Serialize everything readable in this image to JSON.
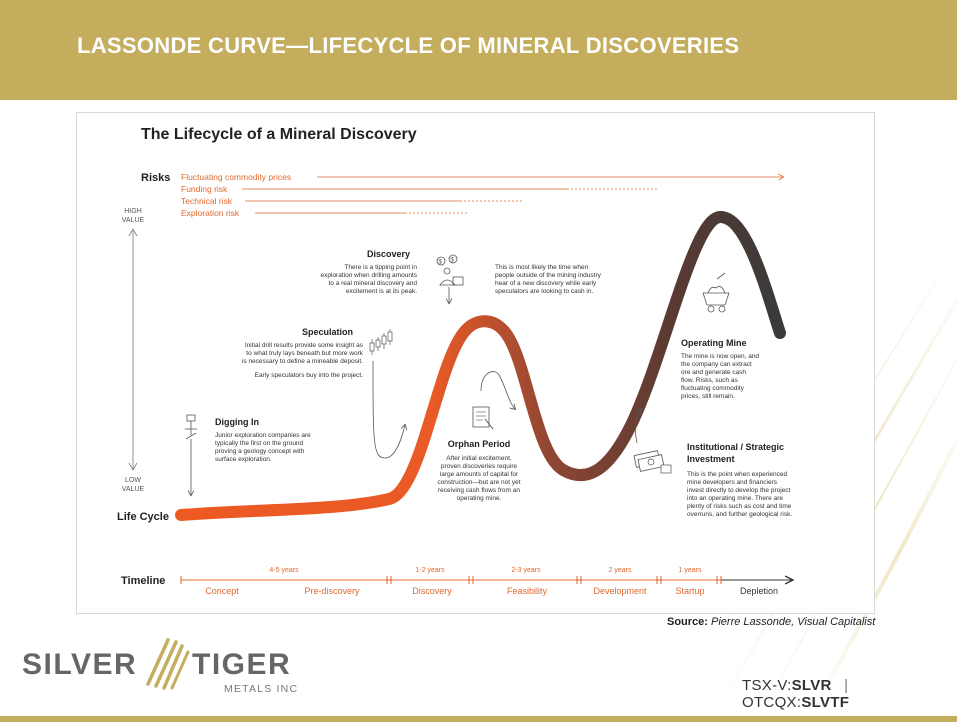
{
  "slide": {
    "title": "LASSONDE CURVE—LIFECYCLE OF MINERAL DISCOVERIES",
    "source_label": "Source:",
    "source_text": "Pierre Lassonde, Visual Capitalist"
  },
  "diagram": {
    "title": "The Lifecycle of a Mineral Discovery",
    "risks_label": "Risks",
    "risks": [
      "Fluctuating commodity prices",
      "Funding risk",
      "Technical risk",
      "Exploration risk"
    ],
    "high_value": [
      "HIGH",
      "VALUE"
    ],
    "low_value": [
      "LOW",
      "VALUE"
    ],
    "life_cycle_label": "Life Cycle",
    "stages": {
      "discovery": {
        "title": "Discovery",
        "lines": [
          "There is a tipping point in",
          "exploration when drilling amounts",
          "to a real mineral discovery and",
          "excitement is at its peak."
        ],
        "note": [
          "This is most likely the time when",
          "people outside of the mining industry",
          "hear of a new discovery while early",
          "speculators are looking to cash in."
        ]
      },
      "speculation": {
        "title": "Speculation",
        "lines": [
          "Initial drill results provide some insight as",
          "to what truly lays beneath but more work",
          "is necessary to define a mineable deposit."
        ],
        "extra": "Early speculators buy into the project."
      },
      "digging_in": {
        "title": "Digging In",
        "lines": [
          "Junior exploration companies are",
          "typically the first on the ground",
          "proving a geology concept with",
          "surface exploration."
        ]
      },
      "orphan": {
        "title": "Orphan Period",
        "lines": [
          "After initial excitement,",
          "proven discoveries require",
          "large amounts of capital for",
          "construction—but are not yet",
          "receiving cash flows from an",
          "operating mine."
        ]
      },
      "operating": {
        "title": "Operating Mine",
        "lines": [
          "The mine is now open, and",
          "the company can extract",
          "ore and generate cash",
          "flow. Risks, such as",
          "fluctuating commodity",
          "prices, still remain."
        ]
      },
      "institutional": {
        "title_lines": [
          "Institutional / Strategic",
          "Investment"
        ],
        "lines": [
          "This is the point when experienced",
          "mine developers and financiers",
          "invest directly to develop the project",
          "into an operating mine. There are",
          "plenty of risks such as cost and time",
          "overruns, and further geological risk."
        ]
      }
    },
    "timeline": {
      "label": "Timeline",
      "durations": [
        "4-5 years",
        "1-2 years",
        "2-3 years",
        "2 years",
        "1 years"
      ],
      "phases": [
        "Concept",
        "Pre-discovery",
        "Discovery",
        "Feasibility",
        "Development",
        "Startup",
        "Depletion"
      ]
    },
    "colors": {
      "orange": "#e8552a",
      "brown": "#8a4a3a",
      "dark": "#3a3a3a",
      "text_orange": "#e2682f"
    }
  },
  "logo": {
    "word1": "SILVER",
    "word2": "TIGER",
    "sub": "METALS INC"
  },
  "tickers": {
    "tsx_prefix": "TSX-V:",
    "tsx_symbol": "SLVR",
    "otc_prefix": "OTCQX:",
    "otc_symbol": "SLVTF",
    "separator": "|"
  },
  "icons": [
    "money-icon",
    "drill-rig-icon",
    "candlestick-chart-icon",
    "document-icon",
    "mine-cart-icon",
    "cash-stack-icon"
  ]
}
